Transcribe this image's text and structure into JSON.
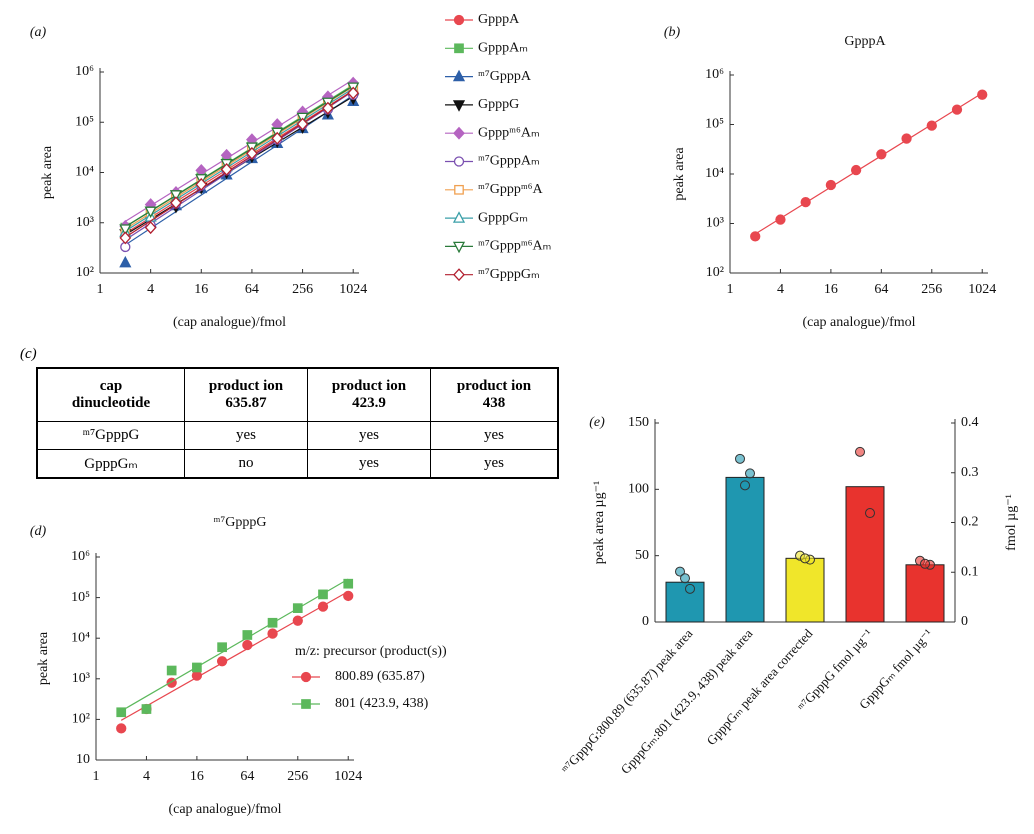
{
  "chart_data": [
    {
      "type": "scatter",
      "panel": "(a)",
      "xlabel": "(cap analogue)/fmol",
      "ylabel": "peak area",
      "xscale": "log",
      "yscale": "log",
      "trendline": true,
      "xlim": [
        1,
        1200
      ],
      "xticks": [
        1,
        4,
        16,
        64,
        256,
        1024
      ],
      "ylim": [
        100,
        1000000
      ],
      "yticks": [
        {
          "value": 100,
          "label": "10²"
        },
        {
          "value": 1000,
          "label": "10³"
        },
        {
          "value": 10000,
          "label": "10⁴"
        },
        {
          "value": 100000,
          "label": "10⁵"
        },
        {
          "value": 1000000,
          "label": "10⁶"
        }
      ],
      "x": [
        2,
        4,
        8,
        16,
        32,
        64,
        128,
        256,
        512,
        1024
      ],
      "series": [
        {
          "name": "GpppA",
          "color": "#e8474f",
          "marker": "circle",
          "filled": true,
          "values": [
            550,
            1200,
            2700,
            6000,
            12000,
            25000,
            52000,
            95000,
            200000,
            400000
          ]
        },
        {
          "name": "GpppAₘ",
          "color": "#5cb85c",
          "marker": "square",
          "filled": true,
          "values": [
            800,
            1600,
            3500,
            8000,
            16000,
            33000,
            65000,
            130000,
            260000,
            520000
          ]
        },
        {
          "name": "ᵐ⁷GpppA",
          "color": "#2d5fa8",
          "marker": "triangle-up",
          "filled": true,
          "values": [
            160,
            1000,
            2200,
            4800,
            9000,
            19000,
            38000,
            75000,
            140000,
            260000
          ]
        },
        {
          "name": "GpppG",
          "color": "#111111",
          "marker": "triangle-down",
          "filled": true,
          "values": [
            600,
            1100,
            2100,
            5000,
            10000,
            21000,
            42000,
            80000,
            160000,
            300000
          ]
        },
        {
          "name": "Gpppᵐ⁶Aₘ",
          "color": "#b564c1",
          "marker": "diamond",
          "filled": true,
          "values": [
            850,
            2300,
            4000,
            11000,
            22000,
            45000,
            90000,
            160000,
            320000,
            600000
          ]
        },
        {
          "name": "ᵐ⁷GpppAₘ",
          "color": "#7a4fb0",
          "marker": "circle",
          "filled": false,
          "values": [
            330,
            900,
            2400,
            5500,
            11000,
            23000,
            45000,
            90000,
            180000,
            350000
          ]
        },
        {
          "name": "ᵐ⁷Gpppᵐ⁶A",
          "color": "#f0a050",
          "marker": "square",
          "filled": false,
          "values": [
            700,
            1500,
            3200,
            7000,
            14000,
            30000,
            60000,
            120000,
            240000,
            480000
          ]
        },
        {
          "name": "GpppGₘ",
          "color": "#3a9fa8",
          "marker": "triangle-up",
          "filled": false,
          "values": [
            650,
            1300,
            3000,
            6500,
            13000,
            27000,
            55000,
            110000,
            220000,
            440000
          ]
        },
        {
          "name": "ᵐ⁷Gpppᵐ⁶Aₘ",
          "color": "#2a7a3a",
          "marker": "triangle-down",
          "filled": false,
          "values": [
            750,
            1700,
            3600,
            7500,
            15000,
            32000,
            63000,
            125000,
            250000,
            500000
          ]
        },
        {
          "name": "ᵐ⁷GpppGₘ",
          "color": "#b22030",
          "marker": "diamond",
          "filled": false,
          "values": [
            500,
            800,
            2500,
            5800,
            11500,
            24000,
            48000,
            92000,
            190000,
            380000
          ]
        }
      ]
    },
    {
      "type": "scatter",
      "panel": "(b)",
      "title": "GpppA",
      "xlabel": "(cap analogue)/fmol",
      "ylabel": "peak area",
      "xscale": "log",
      "yscale": "log",
      "trendline": true,
      "xlim": [
        1,
        1200
      ],
      "xticks": [
        1,
        4,
        16,
        64,
        256,
        1024
      ],
      "ylim": [
        100,
        1000000
      ],
      "yticks": [
        {
          "value": 100,
          "label": "10²"
        },
        {
          "value": 1000,
          "label": "10³"
        },
        {
          "value": 10000,
          "label": "10⁴"
        },
        {
          "value": 100000,
          "label": "10⁵"
        },
        {
          "value": 1000000,
          "label": "10⁶"
        }
      ],
      "x": [
        2,
        4,
        8,
        16,
        32,
        64,
        128,
        256,
        512,
        1024
      ],
      "series": [
        {
          "color": "#e8474f",
          "marker": "circle",
          "filled": true,
          "values": [
            550,
            1200,
            2700,
            6000,
            12000,
            25000,
            52000,
            95000,
            200000,
            400000
          ]
        }
      ]
    },
    {
      "type": "scatter",
      "panel": "(d)",
      "title": "ᵐ⁷GpppG",
      "xlabel": "(cap analogue)/fmol",
      "ylabel": "peak area",
      "legend_title": "m/z: precursor (product(s))",
      "xscale": "log",
      "yscale": "log",
      "trendline": true,
      "xlim": [
        1,
        1200
      ],
      "xticks": [
        1,
        4,
        16,
        64,
        256,
        1024
      ],
      "ylim": [
        10,
        1000000
      ],
      "yticks": [
        10,
        {
          "value": 100,
          "label": "10²"
        },
        {
          "value": 1000,
          "label": "10³"
        },
        {
          "value": 10000,
          "label": "10⁴"
        },
        {
          "value": 100000,
          "label": "10⁵"
        },
        {
          "value": 1000000,
          "label": "10⁶"
        }
      ],
      "x": [
        2,
        4,
        8,
        16,
        32,
        64,
        128,
        256,
        512,
        1024
      ],
      "series": [
        {
          "name": "800.89  (635.87)",
          "color": "#e8474f",
          "marker": "circle",
          "filled": true,
          "values": [
            60,
            180,
            800,
            1200,
            2700,
            6800,
            13000,
            27000,
            60000,
            110000
          ]
        },
        {
          "name": "801  (423.9, 438)",
          "color": "#5cb85c",
          "marker": "square",
          "filled": true,
          "values": [
            150,
            180,
            1600,
            1900,
            6000,
            12000,
            24000,
            55000,
            120000,
            220000
          ]
        }
      ]
    },
    {
      "type": "bar",
      "panel": "(e)",
      "ylabel": "peak area µg⁻¹",
      "y2label": "fmol µg⁻¹",
      "categories": [
        "ᵐ⁷GpppG:800.89 (635.87) peak area",
        "GpppGₘ:801 (423.9, 438) peak area",
        "GpppGₘ peak area corrected",
        "ᵐ⁷GpppG fmol µg⁻¹",
        "GpppGₘ fmol µg⁻¹"
      ],
      "colors": [
        "#1f97b0",
        "#1f97b0",
        "#f0e62a",
        "#e8332e",
        "#e8332e"
      ],
      "ylim": [
        0,
        150
      ],
      "yticks": [
        0,
        50,
        100,
        150
      ],
      "y2lim": [
        0,
        0.4
      ],
      "y2ticks": [
        0,
        0.1,
        0.2,
        0.3,
        0.4
      ],
      "series": [
        {
          "values": [
            30,
            109,
            48,
            null,
            null
          ],
          "points": [
            [
              38,
              25,
              33
            ],
            [
              123,
              112,
              103
            ],
            [
              50,
              47,
              48
            ],
            null,
            null
          ]
        },
        {
          "axis": "y2",
          "values": [
            null,
            null,
            null,
            0.272,
            0.115
          ],
          "points": [
            null,
            null,
            null,
            [
              0.342,
              0.219
            ],
            [
              0.123,
              0.115,
              0.117
            ]
          ]
        }
      ]
    }
  ],
  "table": {
    "panel": "(c)",
    "header": [
      [
        "cap",
        "dinucleotide"
      ],
      [
        "product ion",
        "635.87"
      ],
      [
        "product ion",
        "423.9"
      ],
      [
        "product ion",
        "438"
      ]
    ],
    "rows": [
      [
        "ᵐ⁷GpppG",
        "yes",
        "yes",
        "yes"
      ],
      [
        "GpppGₘ",
        "no",
        "yes",
        "yes"
      ]
    ]
  }
}
